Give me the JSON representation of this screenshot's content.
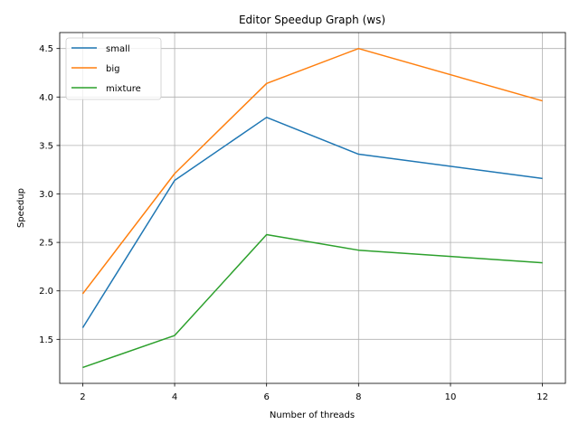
{
  "chart_data": {
    "type": "line",
    "title": "Editor Speedup Graph (ws)",
    "xlabel": "Number of threads",
    "ylabel": "Speedup",
    "x": [
      2,
      4,
      6,
      8,
      12
    ],
    "xlim": [
      1.5,
      12.5
    ],
    "ylim": [
      1.046,
      4.665
    ],
    "xticks": [
      2,
      4,
      6,
      8,
      10,
      12
    ],
    "xtick_labels": [
      "2",
      "4",
      "6",
      "8",
      "10",
      "12"
    ],
    "yticks": [
      1.5,
      2.0,
      2.5,
      3.0,
      3.5,
      4.0,
      4.5
    ],
    "ytick_labels": [
      "1.5",
      "2.0",
      "2.5",
      "3.0",
      "3.5",
      "4.0",
      "4.5"
    ],
    "grid": true,
    "legend_position": "top-left",
    "series": [
      {
        "name": "small",
        "color": "#1f77b4",
        "values": [
          1.62,
          3.14,
          3.79,
          3.41,
          3.16
        ]
      },
      {
        "name": "big",
        "color": "#ff7f0e",
        "values": [
          1.97,
          3.21,
          4.14,
          4.5,
          3.96
        ]
      },
      {
        "name": "mixture",
        "color": "#2ca02c",
        "values": [
          1.21,
          1.54,
          2.58,
          2.42,
          2.29
        ]
      }
    ]
  }
}
